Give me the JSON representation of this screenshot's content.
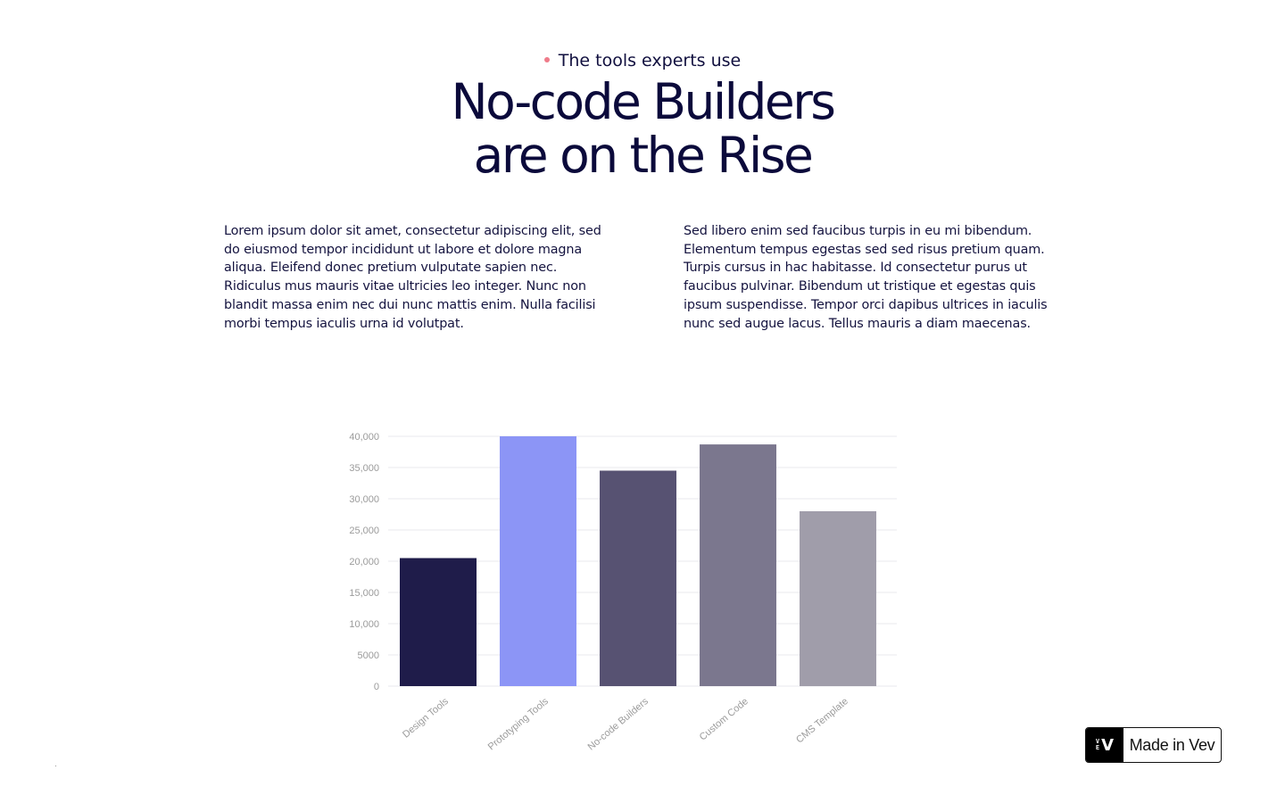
{
  "header": {
    "eyebrow": "The tools experts use",
    "headline_line1": "No-code Builders",
    "headline_line2": "are on the Rise"
  },
  "body": {
    "paragraph_left": "Lorem ipsum dolor sit amet, consectetur adipiscing elit, sed do eiusmod tempor incididunt ut labore et dolore magna aliqua. Eleifend donec pretium vulputate sapien nec. Ridiculus mus mauris vitae ultricies leo integer. Nunc non blandit massa enim nec dui nunc mattis enim. Nulla facilisi morbi tempus iaculis urna id volutpat.",
    "paragraph_right": "Sed libero enim sed faucibus turpis in eu mi bibendum. Elementum tempus egestas sed sed risus pretium quam. Turpis cursus in hac habitasse. Id consectetur purus ut faucibus pulvinar. Bibendum ut tristique et egestas quis ipsum suspendisse. Tempor orci dapibus ultrices in iaculis nunc sed augue lacus. Tellus mauris a diam maecenas."
  },
  "chart_data": {
    "type": "bar",
    "categories": [
      "Design Tools",
      "Prototyping Tools",
      "No-code Builders",
      "Custom Code",
      "CMS Template"
    ],
    "values": [
      20500,
      40000,
      34500,
      38700,
      28000
    ],
    "bar_colors": [
      "#1f1c4a",
      "#8c95f6",
      "#575272",
      "#7b778e",
      "#a09daa"
    ],
    "ylim": [
      0,
      40000
    ],
    "yticks": [
      0,
      5000,
      10000,
      15000,
      20000,
      25000,
      30000,
      35000,
      40000
    ],
    "ytick_labels": [
      "0",
      "5000",
      "10,000",
      "15,000",
      "20,000",
      "25,000",
      "30,000",
      "35,000",
      "40,000"
    ],
    "grid": true,
    "title": "",
    "xlabel": "",
    "ylabel": ""
  },
  "badge": {
    "logo_small_top": "V",
    "logo_small_bottom": "E",
    "logo_big": "V",
    "label": "Made in Vev"
  },
  "colors": {
    "headline": "#0b0a3b",
    "accent_dot": "#ef7b8a",
    "grid": "#e8e8ec",
    "tick_text": "#9b9b9b"
  }
}
